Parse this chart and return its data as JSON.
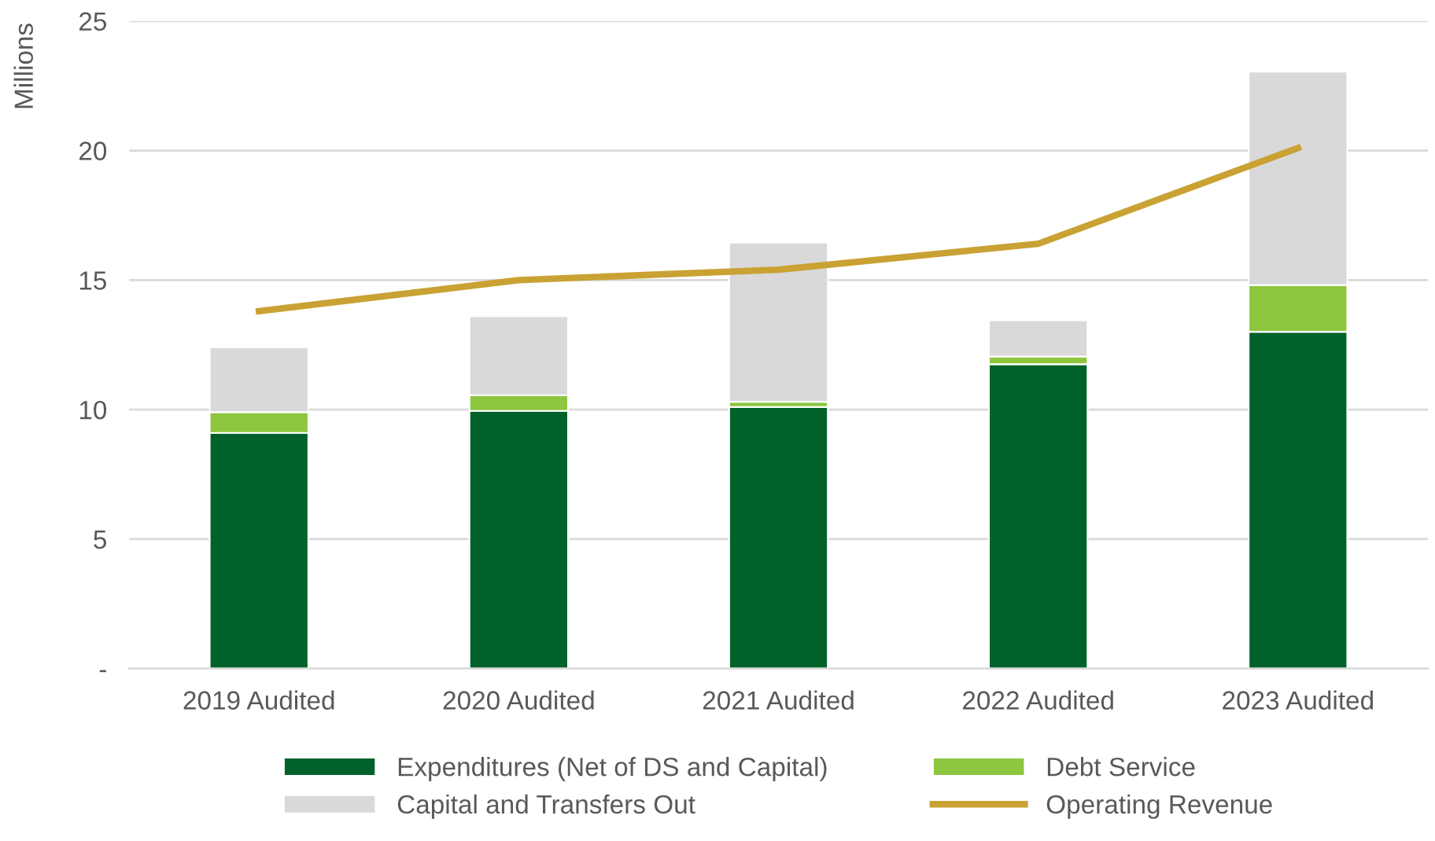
{
  "chart_data": {
    "type": "bar",
    "stacked": true,
    "ylabel": "Millions",
    "categories": [
      "2019 Audited",
      "2020 Audited",
      "2021 Audited",
      "2022 Audited",
      "2023 Audited"
    ],
    "series": [
      {
        "name": "Expenditures (Net of DS and Capital)",
        "color": "#00622a",
        "values": [
          9.1,
          9.95,
          10.1,
          11.75,
          13.0
        ]
      },
      {
        "name": "Debt Service",
        "color": "#8dc63f",
        "values": [
          0.8,
          0.6,
          0.2,
          0.3,
          1.8
        ]
      },
      {
        "name": "Capital and Transfers Out",
        "color": "#d9d9d9",
        "values": [
          2.5,
          3.05,
          6.15,
          1.4,
          8.25
        ]
      },
      {
        "name": "Operating Revenue",
        "color": "#c9a233",
        "type": "line",
        "values": [
          13.8,
          15.0,
          15.4,
          16.4,
          20.1
        ]
      }
    ],
    "ylim": [
      0,
      25
    ],
    "yticks": [
      {
        "value": 0,
        "label": "-"
      },
      5,
      10,
      15,
      20,
      25
    ],
    "grid": "y",
    "legend": "bottom",
    "marker": "none"
  }
}
